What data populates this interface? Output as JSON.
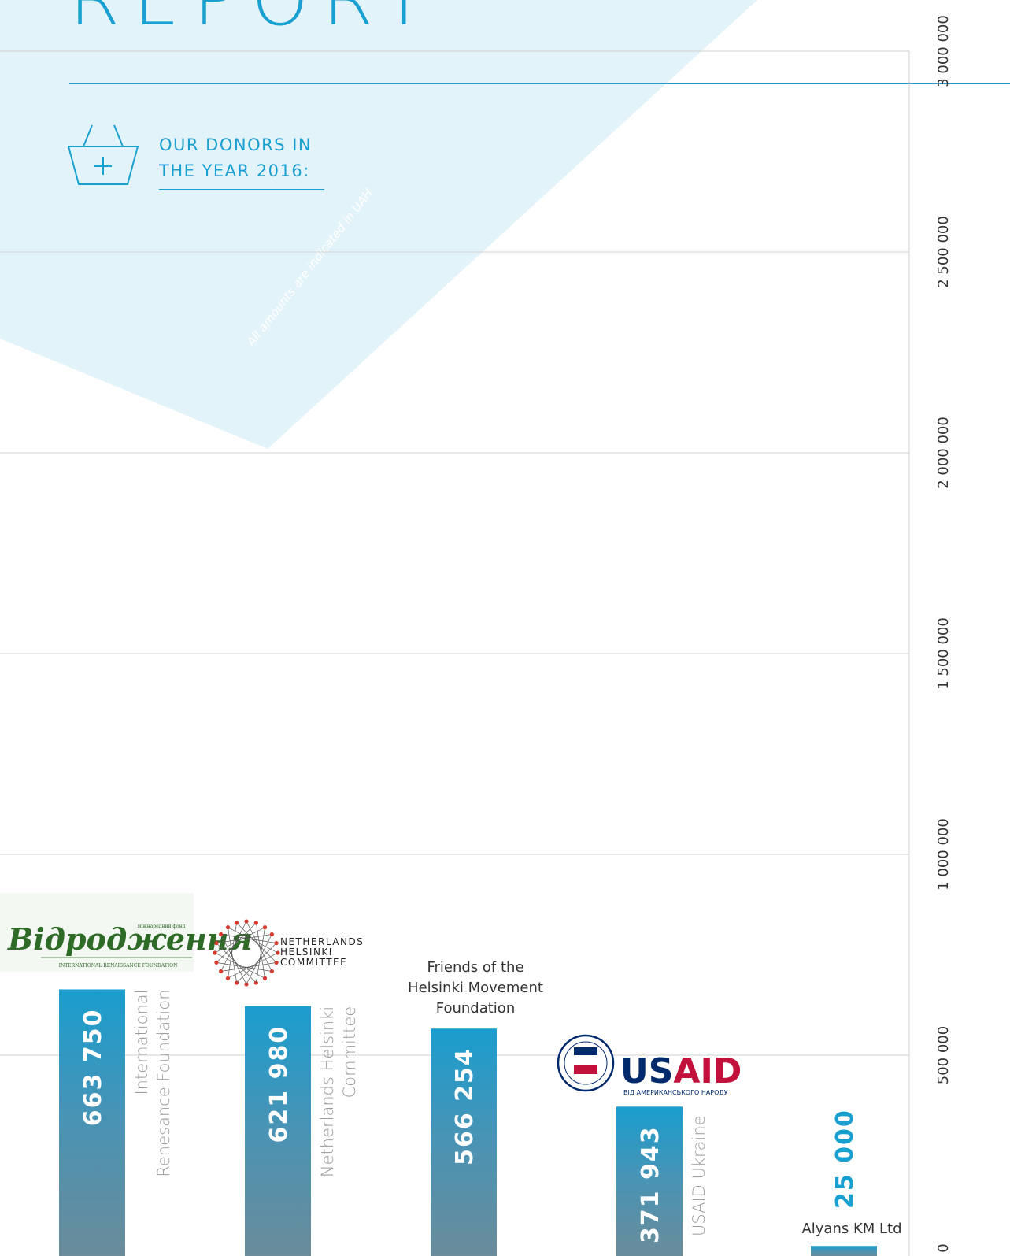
{
  "header": {
    "report_word": "REPORT",
    "section_title": "OUR DONORS IN THE YEAR 2016:",
    "note": "All amounts are indicated in UAH"
  },
  "icons": {
    "basket": "basket-plus-icon"
  },
  "colors": {
    "accent": "#1a9fd1",
    "background_shape": "#e3f3fa",
    "bar_top": "#1a9dce",
    "bar_bottom": "#6a8c9b"
  },
  "chart_data": {
    "type": "bar",
    "orientation": "vertical",
    "ylim": [
      0,
      3000000
    ],
    "yticks": [
      "0",
      "500 000",
      "1 000 000",
      "1 500 000",
      "2 000 000",
      "2 500 000",
      "3 000 000"
    ],
    "grid": true,
    "categories": [
      "International Renesance Foundation",
      "Netherlands Helsinki Committee",
      "Friends of the Helsinki Movement Foundation",
      "USAID Ukraine",
      "Alyans KM Ltd"
    ],
    "values": [
      663750,
      621980,
      566254,
      371943,
      25000
    ],
    "value_labels": [
      "663 750",
      "621 980",
      "566 254",
      "371 943",
      "25 000"
    ],
    "logos": {
      "irf": {
        "name": "Відродження",
        "sub": "міжнародний фонд",
        "caption": "INTERNATIONAL RENAISSANCE FOUNDATION"
      },
      "nhc": {
        "lines": [
          "NETHERLANDS",
          "HELSINKI",
          "COMMITTEE"
        ]
      },
      "usaid": {
        "name_blue": "US",
        "name_red": "AID",
        "sub": "ВІД АМЕРИКАНСЬКОГО НАРОДУ"
      }
    }
  }
}
